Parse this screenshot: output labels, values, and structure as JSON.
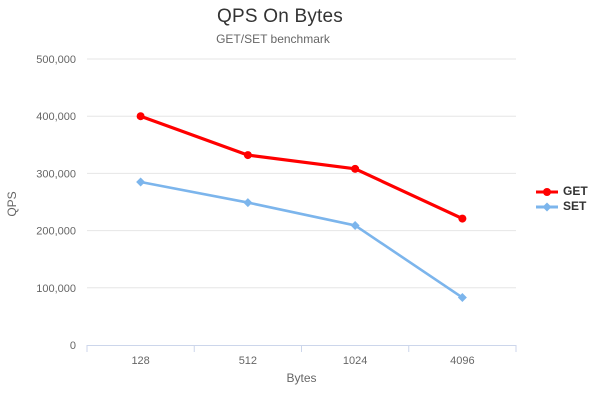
{
  "chart_data": {
    "type": "line",
    "title": "QPS On Bytes",
    "subtitle": "GET/SET benchmark",
    "xlabel": "Bytes",
    "ylabel": "QPS",
    "categories": [
      "128",
      "512",
      "1024",
      "4096"
    ],
    "series": [
      {
        "name": "GET",
        "color": "#ff0000",
        "marker": "circle",
        "line_width": 3.2,
        "values": [
          400000,
          332000,
          308000,
          221000
        ]
      },
      {
        "name": "SET",
        "color": "#7cb5ec",
        "marker": "diamond",
        "line_width": 2.6,
        "values": [
          285000,
          249000,
          209000,
          83000
        ]
      }
    ],
    "ylim": [
      0,
      500000
    ],
    "y_tick_values": [
      0,
      100000,
      200000,
      300000,
      400000,
      500000
    ],
    "y_tick_labels": [
      "0",
      "100,000",
      "200,000",
      "300,000",
      "400,000",
      "500,000"
    ],
    "grid": true,
    "legend_position": "right"
  },
  "colors": {
    "background": "#ffffff",
    "grid_line": "#e6e6e6",
    "axis_line": "#ccd6eb",
    "tick_label": "#666666",
    "axis_title": "#666666",
    "title_text": "#333333",
    "subtitle_text": "#666666",
    "legend_text": "#333333"
  }
}
